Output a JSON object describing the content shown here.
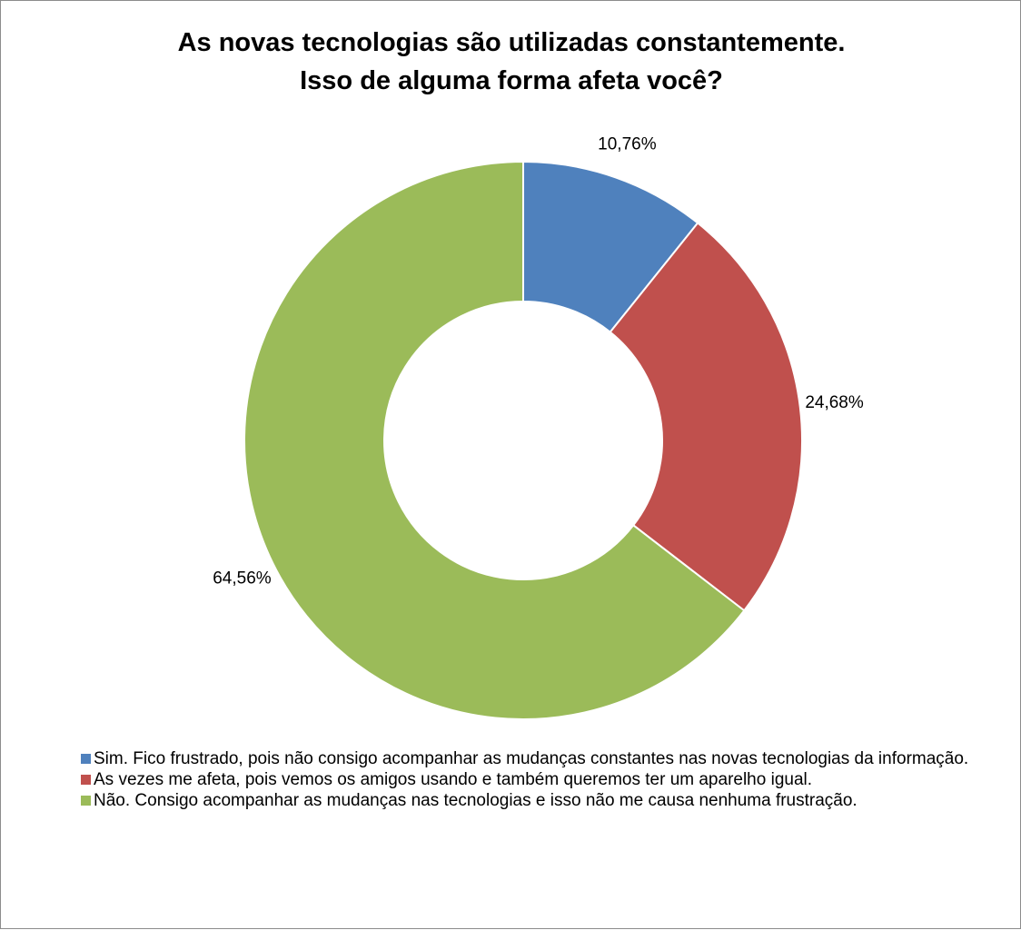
{
  "chart_data": {
    "type": "donut",
    "title": [
      "As novas tecnologias são utilizadas constantemente.",
      "Isso de alguma forma afeta você?"
    ],
    "categories": [
      "Sim. Fico frustrado, pois não consigo acompanhar as mudanças constantes nas novas tecnologias da informação.",
      "As vezes me afeta, pois vemos os amigos usando e também queremos ter um aparelho igual.",
      "Não. Consigo acompanhar as mudanças nas tecnologias e isso não me causa nenhuma frustração."
    ],
    "values": [
      10.76,
      24.68,
      64.56
    ],
    "value_labels": [
      "10,76%",
      "24,68%",
      "64,56%"
    ],
    "colors": [
      "#4f81bd",
      "#c0504d",
      "#9bbb59"
    ],
    "legend": "bottom"
  }
}
